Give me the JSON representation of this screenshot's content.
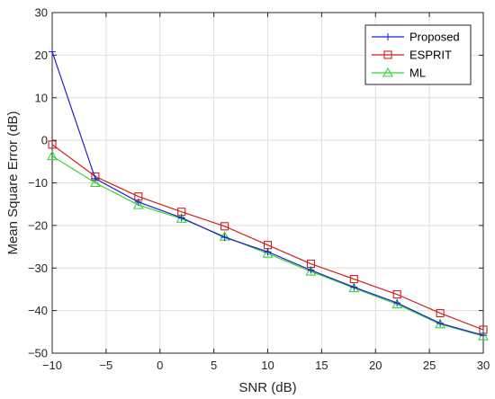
{
  "chart_data": {
    "type": "line",
    "title": "",
    "xlabel": "SNR (dB)",
    "ylabel": "Mean Square Error (dB)",
    "xlim": [
      -10,
      30
    ],
    "ylim": [
      -50,
      30
    ],
    "x_ticks": [
      -10,
      -5,
      0,
      5,
      10,
      15,
      20,
      25,
      30
    ],
    "y_ticks": [
      -50,
      -40,
      -30,
      -20,
      -10,
      0,
      10,
      20,
      30
    ],
    "x_tick_labels": [
      "−10",
      "−5",
      "0",
      "5",
      "10",
      "15",
      "20",
      "25",
      "30"
    ],
    "y_tick_labels": [
      "−50",
      "−40",
      "−30",
      "−20",
      "−10",
      "0",
      "10",
      "20",
      "30"
    ],
    "grid": true,
    "legend_position": "top-right",
    "x": [
      -10,
      -6,
      -2,
      2,
      6,
      10,
      14,
      18,
      22,
      26,
      30
    ],
    "series": [
      {
        "name": "Proposed",
        "color": "#1f1fd0",
        "marker": "plus",
        "values": [
          20.8,
          -9.0,
          -14.5,
          -18.2,
          -22.8,
          -26.2,
          -30.5,
          -34.5,
          -38.2,
          -43.0,
          -45.8
        ]
      },
      {
        "name": "ESPRIT",
        "color": "#d01f1f",
        "marker": "square",
        "values": [
          -1.0,
          -8.5,
          -13.2,
          -16.8,
          -20.2,
          -24.6,
          -29.0,
          -32.6,
          -36.2,
          -40.6,
          -44.5
        ]
      },
      {
        "name": "ML",
        "color": "#33d633",
        "marker": "triangle",
        "values": [
          -3.7,
          -10.0,
          -15.2,
          -18.4,
          -22.6,
          -26.6,
          -30.8,
          -34.7,
          -38.5,
          -43.2,
          -46.0
        ]
      }
    ]
  }
}
